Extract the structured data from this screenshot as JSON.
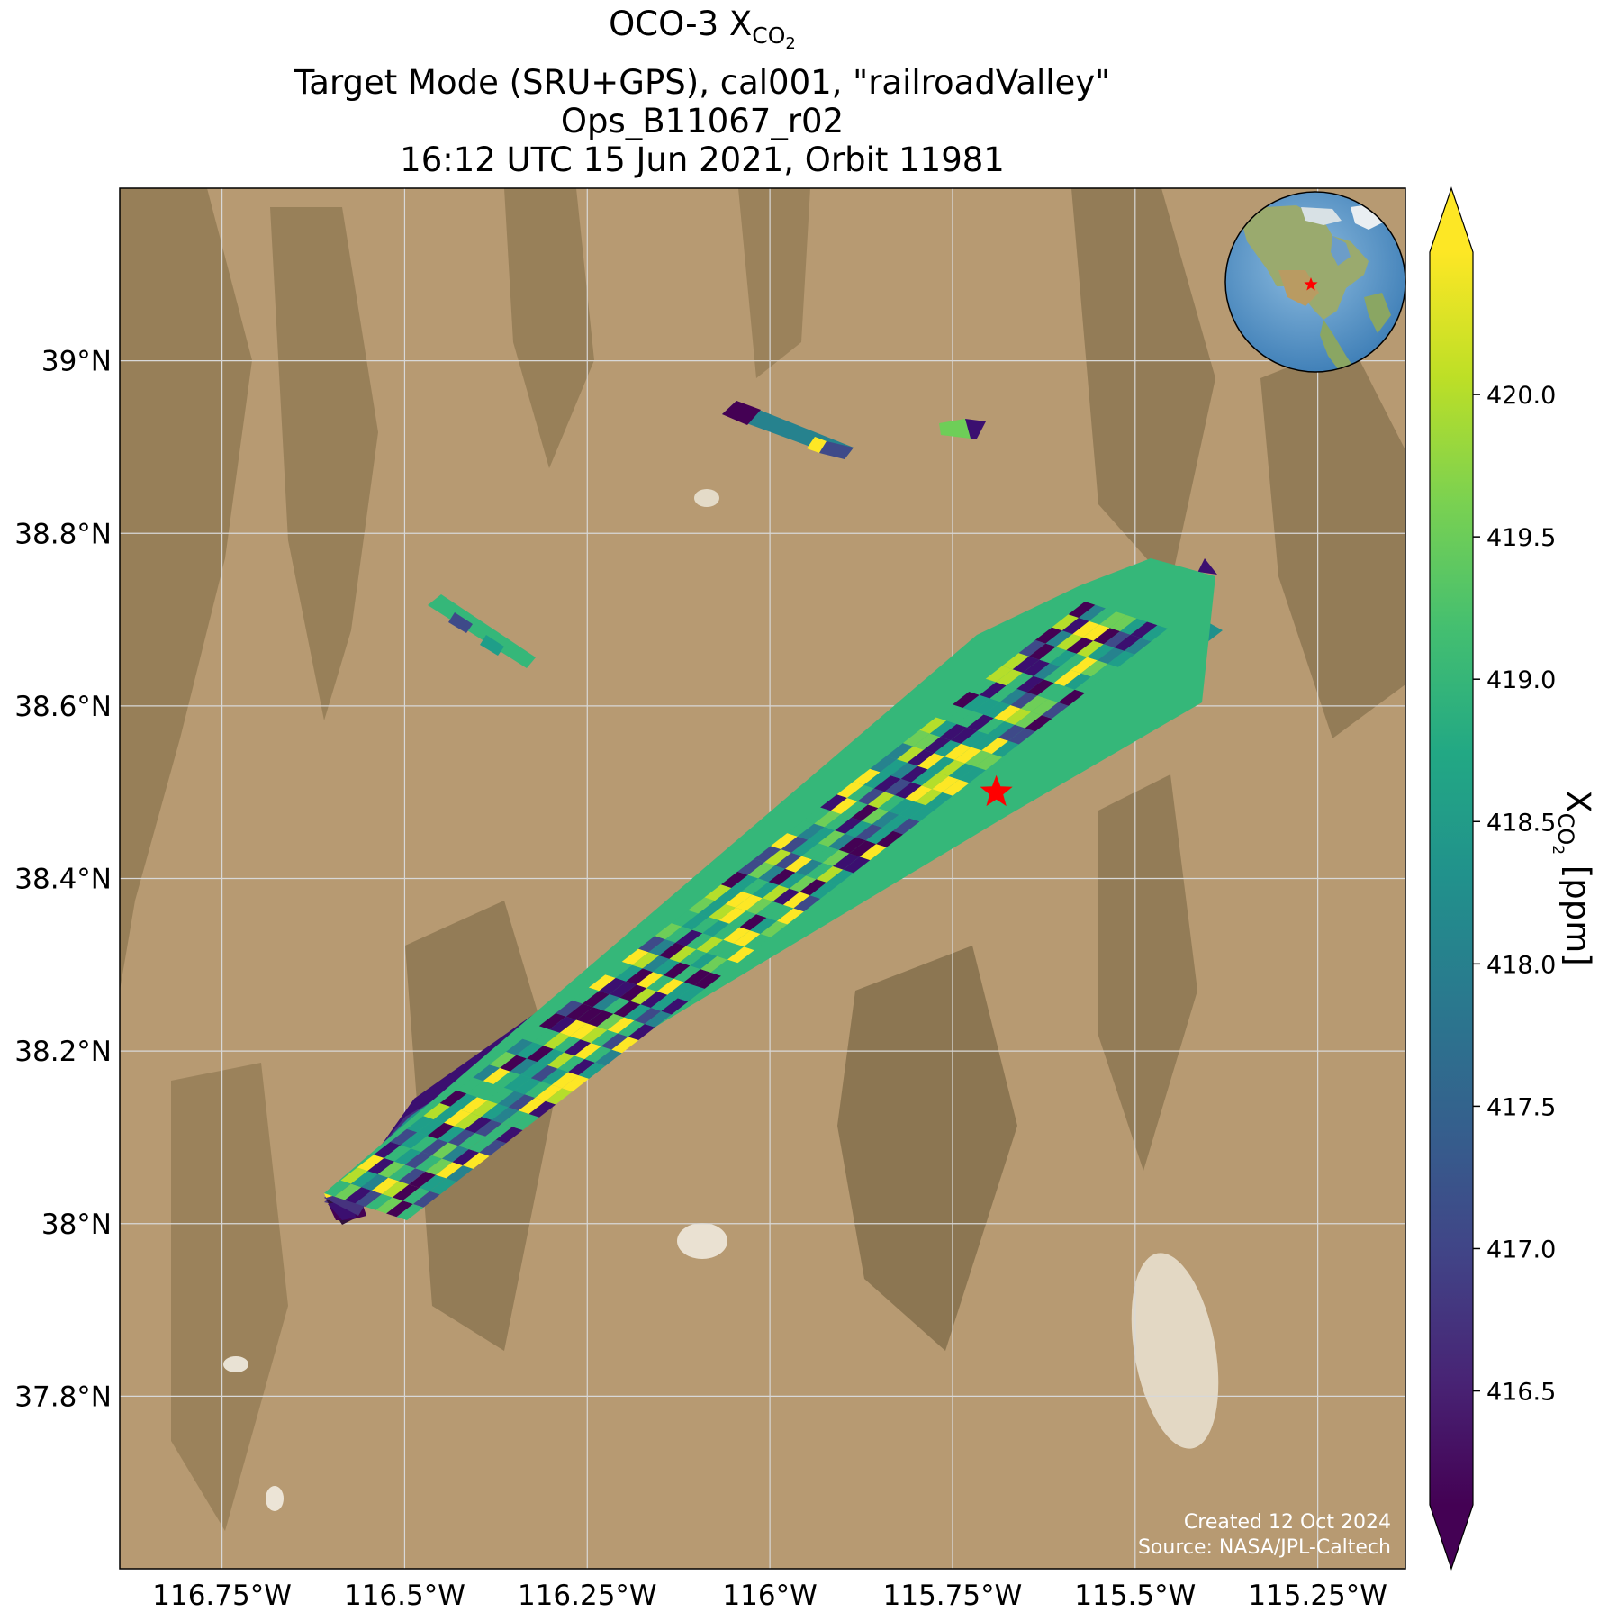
{
  "title": {
    "line1_prefix": "OCO-3 X",
    "line1_sub": "CO",
    "line1_subsub": "2",
    "line2": "Target Mode (SRU+GPS), cal001, \"railroadValley\"",
    "line3": "Ops_B11067_r02",
    "line4": "16:12 UTC 15 Jun 2021, Orbit 11981"
  },
  "map": {
    "lon_range": [
      -116.89,
      -115.13
    ],
    "lat_range": [
      37.6,
      39.2
    ],
    "lon_ticks": [
      {
        "value": -116.75,
        "label": "116.75°W"
      },
      {
        "value": -116.5,
        "label": "116.5°W"
      },
      {
        "value": -116.25,
        "label": "116.25°W"
      },
      {
        "value": -116.0,
        "label": "116°W"
      },
      {
        "value": -115.75,
        "label": "115.75°W"
      },
      {
        "value": -115.5,
        "label": "115.5°W"
      },
      {
        "value": -115.25,
        "label": "115.25°W"
      }
    ],
    "lat_ticks": [
      {
        "value": 39.0,
        "label": "39°N"
      },
      {
        "value": 38.8,
        "label": "38.8°N"
      },
      {
        "value": 38.6,
        "label": "38.6°N"
      },
      {
        "value": 38.4,
        "label": "38.4°N"
      },
      {
        "value": 38.2,
        "label": "38.2°N"
      },
      {
        "value": 38.0,
        "label": "38°N"
      },
      {
        "value": 37.8,
        "label": "37.8°N"
      }
    ],
    "target": {
      "lon": -115.69,
      "lat": 38.5,
      "marker": "red-star"
    },
    "colors": {
      "background": "#b79a72",
      "grid": "#d8d8d8",
      "target": "#ff0000"
    },
    "credit_line1": "Created 12 Oct 2024",
    "credit_line2": "Source: NASA/JPL-Caltech"
  },
  "colorbar": {
    "colormap": "viridis",
    "range": [
      416.1,
      420.5
    ],
    "extend": "both",
    "ticks": [
      {
        "value": 416.5,
        "label": "416.5"
      },
      {
        "value": 417.0,
        "label": "417.0"
      },
      {
        "value": 417.5,
        "label": "417.5"
      },
      {
        "value": 418.0,
        "label": "418.0"
      },
      {
        "value": 418.5,
        "label": "418.5"
      },
      {
        "value": 419.0,
        "label": "419.0"
      },
      {
        "value": 419.5,
        "label": "419.5"
      },
      {
        "value": 420.0,
        "label": "420.0"
      }
    ],
    "label_prefix": "X",
    "label_sub": "CO",
    "label_subsub": "2",
    "label_suffix": " [ppm]"
  },
  "inset": {
    "description": "orthographic globe centred on North America",
    "marker": "red-star"
  }
}
